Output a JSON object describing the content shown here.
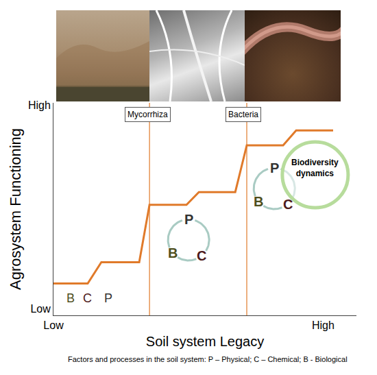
{
  "chart_data": {
    "type": "line",
    "xlabel": "Soil system Legacy",
    "ylabel": "Agrosystem Functioning",
    "x": [
      0,
      1.13,
      1.58,
      2.83,
      3.17,
      4.39,
      4.8,
      6.0,
      6.38,
      7.58,
      8.01,
      9.23
    ],
    "values": [
      1.5,
      1.5,
      2.5,
      2.5,
      5.2,
      5.2,
      5.8,
      5.8,
      8.0,
      8.0,
      8.7,
      8.7
    ],
    "color": "#e07a2a",
    "xlim": [
      0,
      10
    ],
    "ylim": [
      0,
      10
    ],
    "xticks": [
      {
        "value": 0,
        "label": "Low"
      },
      {
        "value": 8.9,
        "label": "High"
      }
    ],
    "yticks": [
      {
        "value": 0.3,
        "label": "Low"
      },
      {
        "value": 9.9,
        "label": "High"
      }
    ],
    "grid": false,
    "dividers": [
      3.17,
      6.38
    ],
    "markers": [
      {
        "text": "Mycorrhiza",
        "x": 3.1,
        "y": 9.45
      },
      {
        "text": "Bacteria",
        "x": 6.27,
        "y": 9.45
      }
    ],
    "letters": [
      {
        "text": "B",
        "x": 0.57,
        "y": 0.8
      },
      {
        "text": "C",
        "x": 1.13,
        "y": 0.8
      },
      {
        "text": "P",
        "x": 1.81,
        "y": 0.8
      }
    ],
    "cycles": [
      {
        "x": 4.46,
        "y": 3.55,
        "top": "P",
        "right": "C",
        "left": "B"
      },
      {
        "x": 7.29,
        "y": 5.97,
        "top": "P",
        "right": "C",
        "left": "B"
      }
    ],
    "letter_colors": {
      "P": "#333333",
      "B": "#4f4f1e",
      "C": "#4d1a1a"
    },
    "highlight": {
      "text": "Biodiversity dynamics",
      "x": 8.64,
      "y": 6.61
    },
    "caption": "Factors and processes in the soil system: P – Physical; C – Chemical; B - Biological"
  }
}
